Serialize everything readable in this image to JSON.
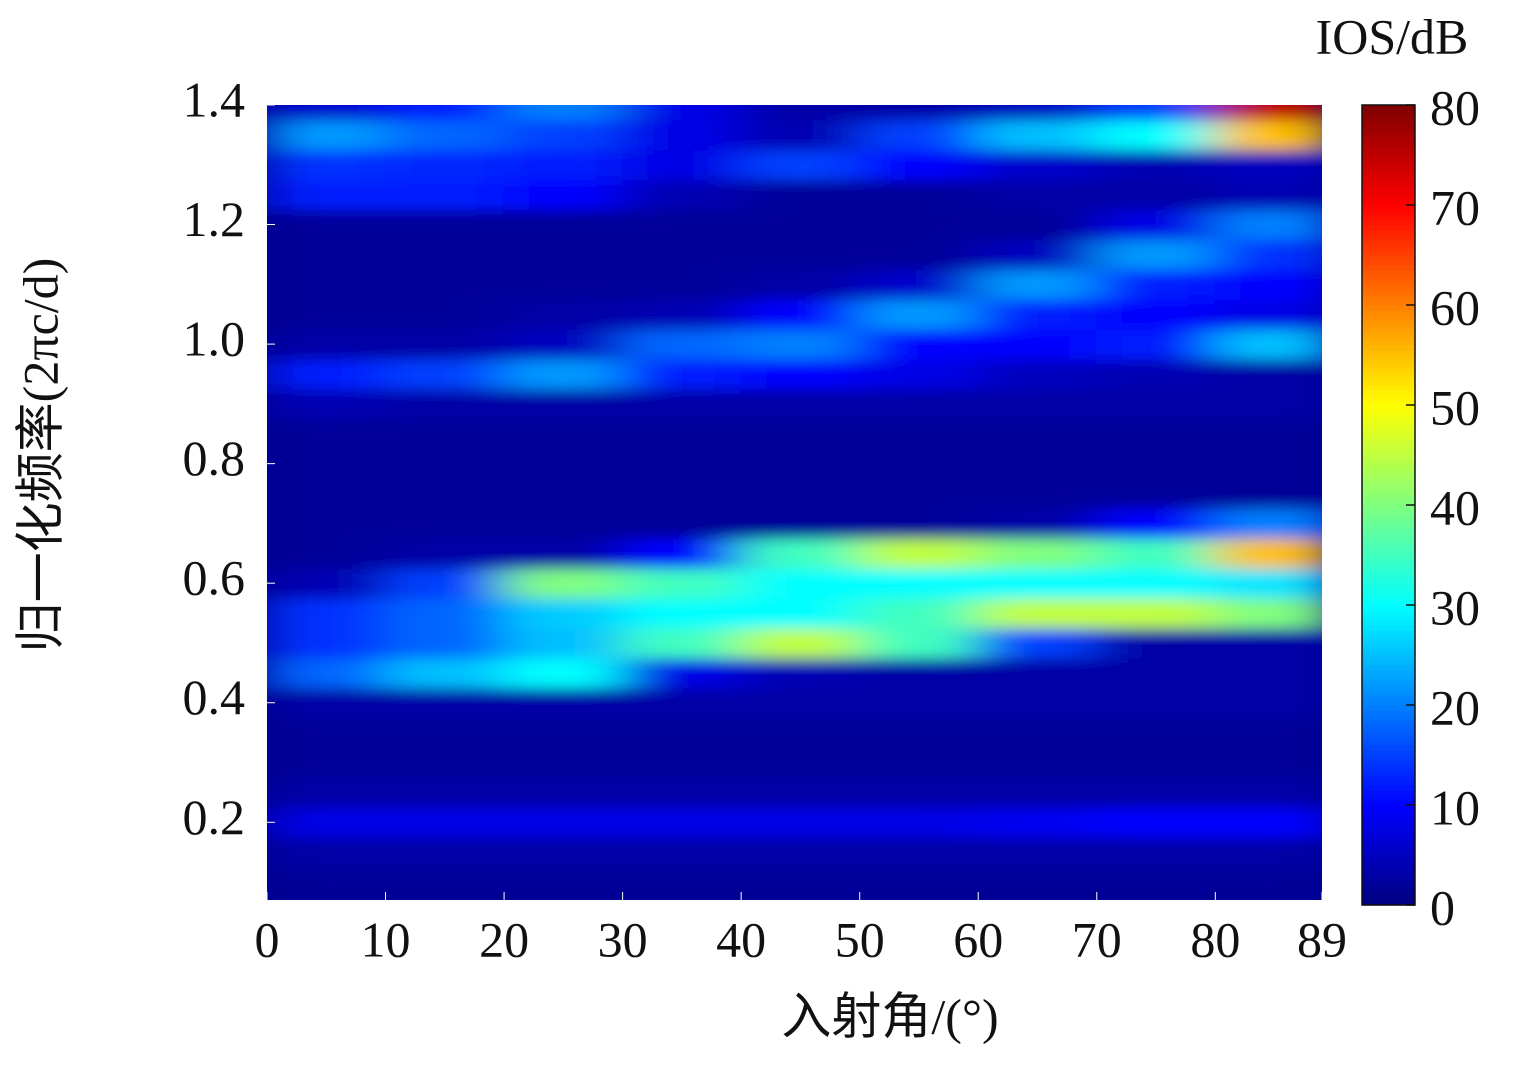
{
  "chart_data": {
    "type": "heatmap",
    "xlabel": "入射角/(°)",
    "ylabel": "归一化频率(2πc/d)",
    "colorbar_label": "IOS/dB",
    "colormap": "jet",
    "x": [
      5,
      15,
      25,
      35,
      45,
      55,
      65,
      75,
      85
    ],
    "y": [
      0.1,
      0.15,
      0.2,
      0.25,
      0.3,
      0.35,
      0.4,
      0.45,
      0.5,
      0.55,
      0.6,
      0.65,
      0.7,
      0.75,
      0.8,
      0.85,
      0.9,
      0.95,
      1.0,
      1.05,
      1.1,
      1.15,
      1.2,
      1.25,
      1.3,
      1.35,
      1.4
    ],
    "z": [
      [
        2,
        2,
        2,
        2,
        2,
        2,
        2,
        2,
        2
      ],
      [
        3,
        3,
        3,
        3,
        3,
        3,
        3,
        3,
        3
      ],
      [
        8,
        8,
        8,
        8,
        8,
        8,
        9,
        10,
        10
      ],
      [
        3,
        3,
        3,
        3,
        3,
        3,
        3,
        3,
        3
      ],
      [
        2,
        2,
        2,
        2,
        2,
        2,
        2,
        2,
        2
      ],
      [
        2,
        2,
        2,
        2,
        2,
        2,
        2,
        2,
        2
      ],
      [
        3,
        3,
        3,
        3,
        3,
        3,
        3,
        3,
        3
      ],
      [
        18,
        25,
        30,
        8,
        4,
        3,
        3,
        3,
        3
      ],
      [
        14,
        18,
        25,
        35,
        45,
        35,
        15,
        3,
        3
      ],
      [
        14,
        18,
        26,
        30,
        30,
        35,
        45,
        45,
        40
      ],
      [
        4,
        15,
        40,
        35,
        30,
        30,
        30,
        30,
        28
      ],
      [
        2,
        3,
        3,
        10,
        35,
        45,
        40,
        35,
        55
      ],
      [
        2,
        2,
        2,
        2,
        2,
        2,
        3,
        10,
        20
      ],
      [
        2,
        2,
        2,
        2,
        2,
        2,
        2,
        2,
        2
      ],
      [
        2,
        2,
        2,
        2,
        2,
        2,
        2,
        2,
        2
      ],
      [
        2,
        2,
        2,
        2,
        2,
        2,
        2,
        2,
        2
      ],
      [
        4,
        3,
        3,
        3,
        3,
        3,
        3,
        3,
        3
      ],
      [
        12,
        15,
        22,
        12,
        10,
        8,
        5,
        4,
        3
      ],
      [
        3,
        3,
        5,
        18,
        20,
        10,
        10,
        12,
        25
      ],
      [
        2,
        2,
        3,
        4,
        10,
        22,
        12,
        10,
        8
      ],
      [
        2,
        2,
        2,
        2,
        3,
        6,
        22,
        12,
        10
      ],
      [
        2,
        2,
        2,
        2,
        2,
        2,
        5,
        22,
        14
      ],
      [
        2,
        2,
        2,
        2,
        2,
        2,
        2,
        8,
        20
      ],
      [
        12,
        12,
        10,
        4,
        2,
        2,
        3,
        3,
        4
      ],
      [
        14,
        13,
        12,
        8,
        15,
        10,
        6,
        4,
        5
      ],
      [
        22,
        18,
        15,
        8,
        4,
        15,
        25,
        30,
        55
      ],
      [
        6,
        12,
        20,
        8,
        3,
        3,
        5,
        15,
        75
      ]
    ],
    "xlim": [
      0,
      89
    ],
    "xticks": [
      0,
      10,
      20,
      30,
      40,
      50,
      60,
      70,
      80,
      89
    ],
    "ylim": [
      0.07,
      1.4
    ],
    "yticks": [
      {
        "value": 0.2,
        "label": "0.2"
      },
      {
        "value": 0.4,
        "label": "0.4"
      },
      {
        "value": 0.6,
        "label": "0.6"
      },
      {
        "value": 0.8,
        "label": "0.8"
      },
      {
        "value": 1.0,
        "label": "1.0"
      },
      {
        "value": 1.2,
        "label": "1.2"
      },
      {
        "value": 1.4,
        "label": "1.4"
      }
    ],
    "clim": [
      0,
      80
    ],
    "cticks": [
      0,
      10,
      20,
      30,
      40,
      50,
      60,
      70,
      80
    ]
  }
}
